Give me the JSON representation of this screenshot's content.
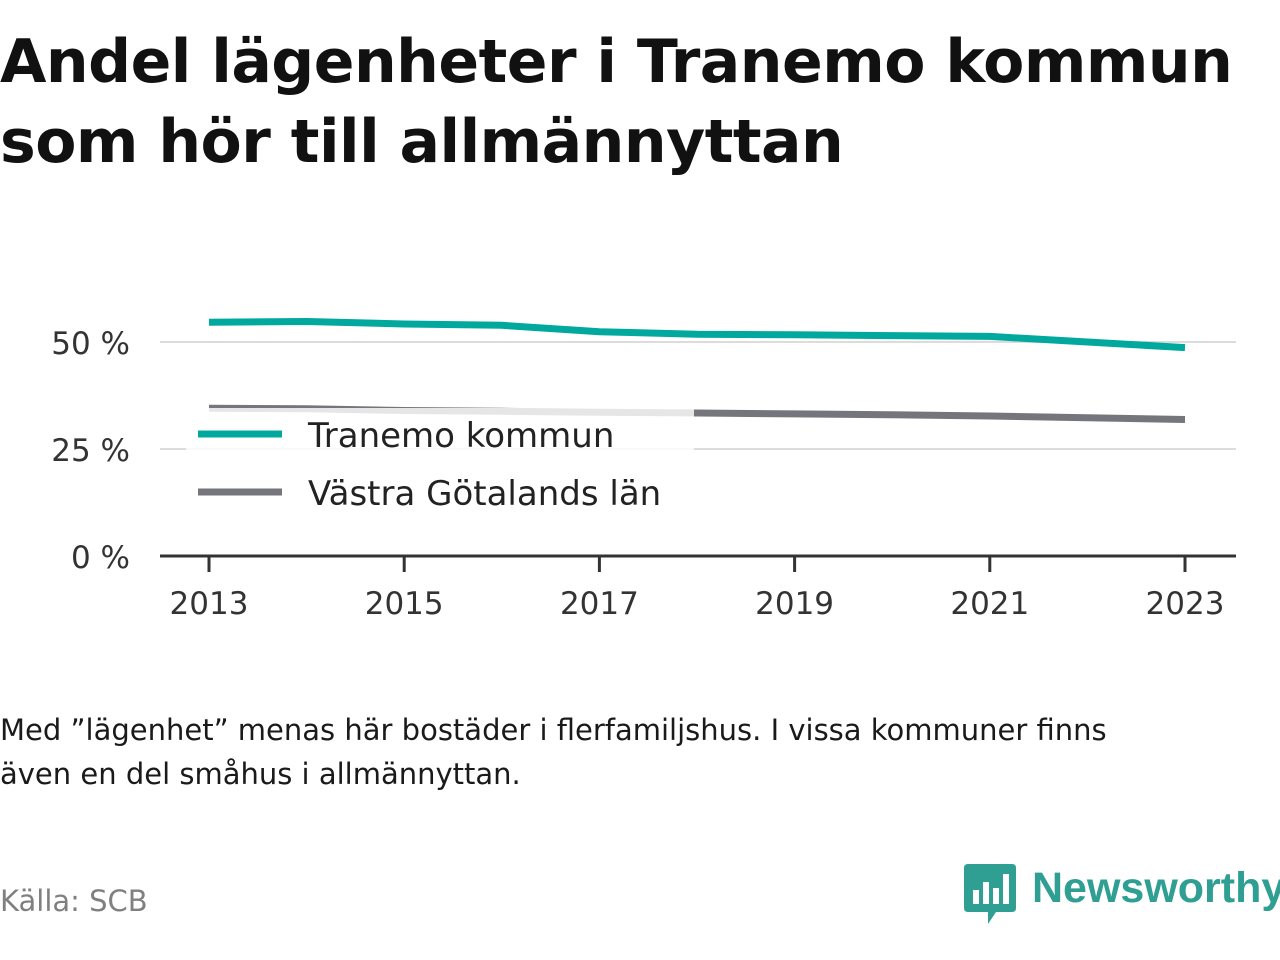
{
  "title_line1": "Andel lägenheter i Tranemo kommun",
  "title_line2": "som hör till allmännyttan",
  "note_line1": "Med ”lägenhet” menas här bostäder i flerfamiljshus. I vissa kommuner finns",
  "note_line2": "även en del småhus i allmännyttan.",
  "source": "Källa: SCB",
  "brand": "Newsworthy",
  "chart_data": {
    "type": "line",
    "x": [
      2013,
      2014,
      2015,
      2016,
      2017,
      2018,
      2019,
      2020,
      2021,
      2022,
      2023
    ],
    "series": [
      {
        "name": "Tranemo kommun",
        "color": "#00a89d",
        "values": [
          54.6,
          54.8,
          54.2,
          53.9,
          52.4,
          51.8,
          51.7,
          51.5,
          51.3,
          50.0,
          48.7
        ]
      },
      {
        "name": "Västra Götalands län",
        "color": "#75767c",
        "values": [
          34.5,
          34.4,
          34.0,
          33.8,
          33.6,
          33.4,
          33.2,
          33.0,
          32.7,
          32.3,
          31.9
        ]
      }
    ],
    "x_ticks": [
      "2013",
      "2015",
      "2017",
      "2019",
      "2021",
      "2023"
    ],
    "y_ticks": [
      "0 %",
      "25 %",
      "50 %"
    ],
    "ylim": [
      0,
      60
    ],
    "grid": true,
    "legend_placement": "left-center"
  }
}
